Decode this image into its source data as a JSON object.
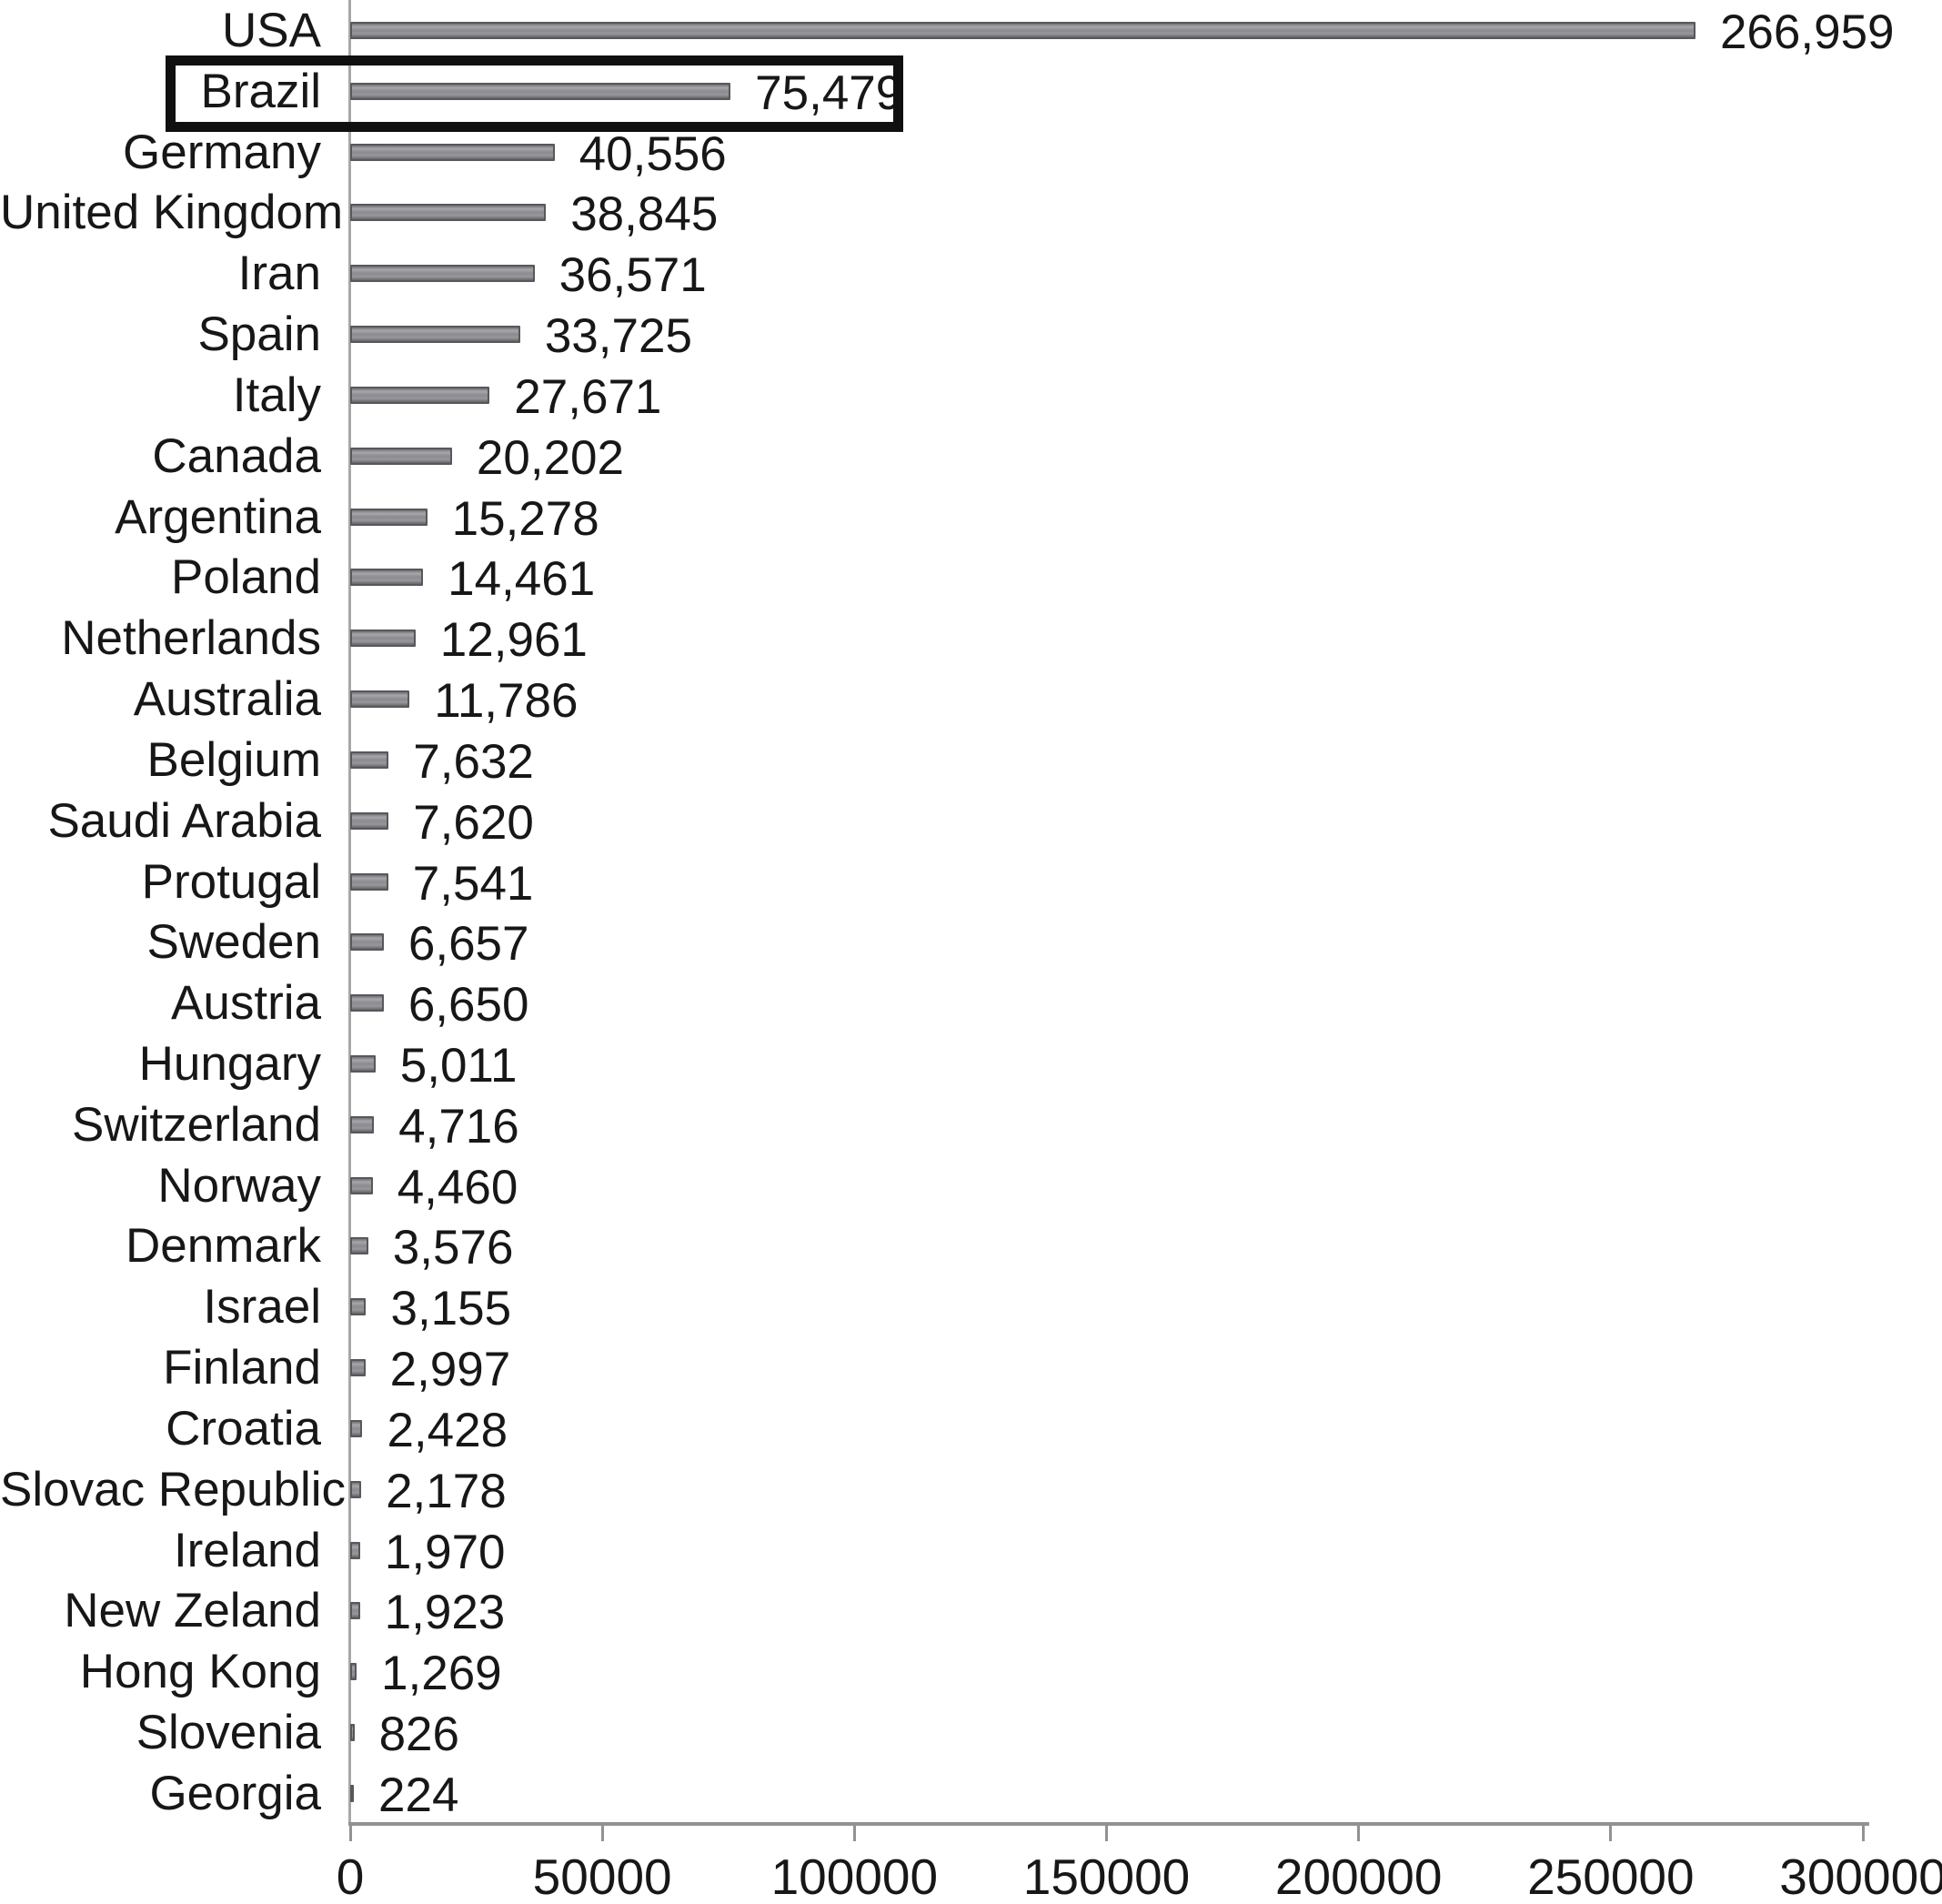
{
  "chart_data": {
    "type": "bar",
    "orientation": "horizontal",
    "title": "",
    "xlabel": "",
    "ylabel": "",
    "categories": [
      "USA",
      "Brazil",
      "Germany",
      "United Kingdom",
      "Iran",
      "Spain",
      "Italy",
      "Canada",
      "Argentina",
      "Poland",
      "Netherlands",
      "Australia",
      "Belgium",
      "Saudi Arabia",
      "Protugal",
      "Sweden",
      "Austria",
      "Hungary",
      "Switzerland",
      "Norway",
      "Denmark",
      "Israel",
      "Finland",
      "Croatia",
      "Slovac Republic",
      "Ireland",
      "New Zeland",
      "Hong Kong",
      "Slovenia",
      "Georgia"
    ],
    "values": [
      266959,
      75479,
      40556,
      38845,
      36571,
      33725,
      27671,
      20202,
      15278,
      14461,
      12961,
      11786,
      7632,
      7620,
      7541,
      6657,
      6650,
      5011,
      4716,
      4460,
      3576,
      3155,
      2997,
      2428,
      2178,
      1970,
      1923,
      1269,
      826,
      224
    ],
    "value_labels": [
      "266,959",
      "75,479",
      "40,556",
      "38,845",
      "36,571",
      "33,725",
      "27,671",
      "20,202",
      "15,278",
      "14,461",
      "12,961",
      "11,786",
      "7,632",
      "7,620",
      "7,541",
      "6,657",
      "6,650",
      "5,011",
      "4,716",
      "4,460",
      "3,576",
      "3,155",
      "2,997",
      "2,428",
      "2,178",
      "1,970",
      "1,923",
      "1,269",
      "826",
      "224"
    ],
    "xlim": [
      0,
      300000
    ],
    "x_tick_labels": [
      "0",
      "50000",
      "100000",
      "150000",
      "200000",
      "250000",
      "300000"
    ],
    "grid": false,
    "legend": false,
    "highlighted_category": "Brazil",
    "bar_fill_color": "#8c8c90",
    "bar_border_color": "#58585c",
    "axis_color": "#929292",
    "text_color": "#171717",
    "highlight_box_color": "#101010"
  }
}
